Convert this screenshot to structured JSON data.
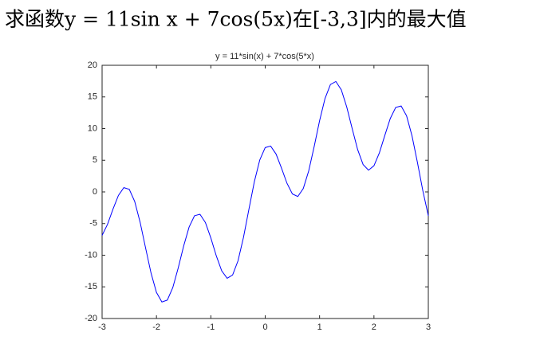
{
  "heading": "求函数y = 11sin x + 7cos(5x)在[-3,3]内的最大值",
  "chart_data": {
    "type": "line",
    "title": "y = 11*sin(x) + 7*cos(5*x)",
    "x": [
      -3,
      -2.9,
      -2.8,
      -2.7,
      -2.6,
      -2.5,
      -2.4,
      -2.3,
      -2.2,
      -2.1,
      -2,
      -1.9,
      -1.8,
      -1.7,
      -1.6,
      -1.5,
      -1.4,
      -1.3,
      -1.2,
      -1.1,
      -1,
      -0.9,
      -0.8,
      -0.7,
      -0.6,
      -0.5,
      -0.4,
      -0.3,
      -0.2,
      -0.1,
      0,
      0.1,
      0.2,
      0.3,
      0.4,
      0.5,
      0.6,
      0.7,
      0.8,
      0.9,
      1,
      1.1,
      1.2,
      1.3,
      1.4,
      1.5,
      1.6,
      1.7,
      1.8,
      1.9,
      2,
      2.1,
      2.2,
      2.3,
      2.4,
      2.5,
      2.6,
      2.7,
      2.8,
      2.9,
      3
    ],
    "series": [
      {
        "color": "#0000ff",
        "values": [
          -6.87,
          -5.12,
          -2.73,
          -0.56,
          0.68,
          0.4,
          -1.52,
          -4.82,
          -8.86,
          -12.82,
          -15.88,
          -17.39,
          -17.09,
          -15.12,
          -12.01,
          -8.55,
          -5.56,
          -3.76,
          -3.53,
          -4.84,
          -7.27,
          -10.09,
          -12.47,
          -13.64,
          -13.14,
          -10.88,
          -7.2,
          -2.76,
          1.6,
          5.04,
          7.0,
          7.24,
          5.97,
          3.75,
          1.37,
          -0.33,
          -0.72,
          0.53,
          3.32,
          7.14,
          11.24,
          14.76,
          16.97,
          17.44,
          16.12,
          13.4,
          9.98,
          6.69,
          4.33,
          3.43,
          4.13,
          6.17,
          8.92,
          11.59,
          13.34,
          13.57,
          12.02,
          8.85,
          4.64,
          0.15,
          -3.77
        ]
      }
    ],
    "xlim": [
      -3,
      3
    ],
    "xticks": [
      -3,
      -2,
      -1,
      0,
      1,
      2,
      3
    ],
    "ylim": [
      -20,
      20
    ],
    "yticks": [
      -20,
      -15,
      -10,
      -5,
      0,
      5,
      10,
      15,
      20
    ]
  }
}
